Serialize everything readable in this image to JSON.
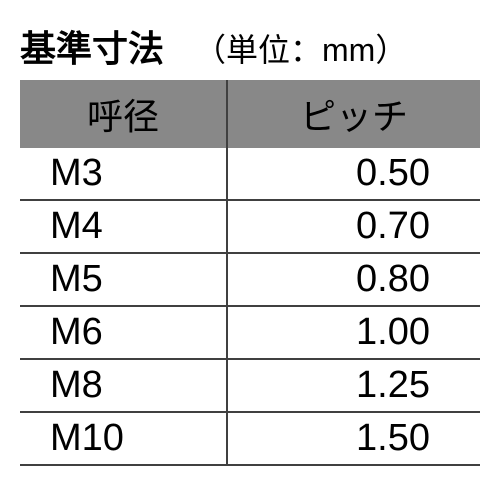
{
  "title": "基準寸法",
  "unit_label": "（単位：mm）",
  "table": {
    "columns": [
      "呼径",
      "ピッチ"
    ],
    "rows": [
      [
        "M3",
        "0.50"
      ],
      [
        "M4",
        "0.70"
      ],
      [
        "M5",
        "0.80"
      ],
      [
        "M6",
        "1.00"
      ],
      [
        "M8",
        "1.25"
      ],
      [
        "M10",
        "1.50"
      ]
    ],
    "header_bg_color": "#888888",
    "border_color": "#404040",
    "font_size_header": 36,
    "font_size_cell": 38,
    "col_widths": [
      "45%",
      "55%"
    ],
    "col_align": [
      "left",
      "right"
    ]
  }
}
